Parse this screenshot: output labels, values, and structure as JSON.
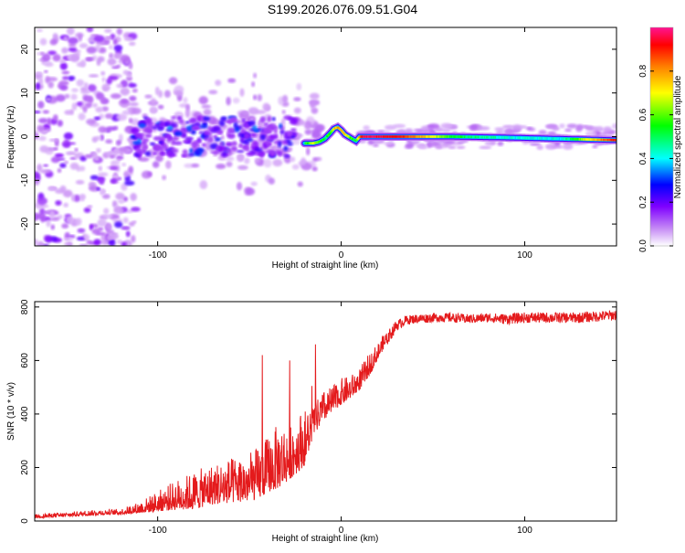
{
  "title": "S199.2026.076.09.51.G04",
  "colors": {
    "snr_line": "#e41a1c",
    "signal_ridge": "#e8112d",
    "background": "#ffffff"
  },
  "chart_data": [
    {
      "type": "heatmap",
      "name": "spectrogram",
      "xlabel": "Height of straight line (km)",
      "ylabel": "Frequency (Hz)",
      "xlim": [
        -167,
        150
      ],
      "ylim": [
        -25,
        25
      ],
      "xticks": [
        -100,
        0,
        100
      ],
      "yticks": [
        20,
        10,
        0,
        -10,
        -20
      ],
      "colorbar": {
        "label": "Normalized spectral amplitude",
        "range": [
          0,
          1
        ],
        "ticks": [
          0.0,
          0.2,
          0.4,
          0.6,
          0.8
        ],
        "colormap": [
          "#ffffff",
          "#b565f2",
          "#7f00ff",
          "#0000ff",
          "#00ffff",
          "#00ff00",
          "#ffff00",
          "#ff8000",
          "#ff0000",
          "#ff1493"
        ]
      },
      "ridge": {
        "x": [
          -20,
          -15,
          -12,
          -9,
          -6,
          -4,
          -2,
          0,
          2,
          4,
          6,
          8,
          10,
          12,
          30,
          60,
          90,
          120,
          150
        ],
        "y": [
          -1.5,
          -1.5,
          -1.2,
          -0.5,
          0.8,
          1.8,
          2.2,
          1.5,
          0.5,
          0.0,
          -0.5,
          -1.0,
          0.0,
          0.0,
          0.0,
          0.0,
          -0.2,
          -0.5,
          -0.8
        ],
        "amplitude": [
          0.55,
          0.65,
          0.6,
          0.5,
          0.6,
          0.7,
          0.75,
          0.75,
          0.7,
          0.6,
          0.55,
          0.55,
          0.85,
          0.95,
          0.9,
          0.55,
          0.45,
          0.45,
          0.9
        ]
      }
    },
    {
      "type": "line",
      "name": "snr",
      "xlabel": "Height of straight line (km)",
      "ylabel": "SNR (10 * v/v)",
      "xlim": [
        -167,
        150
      ],
      "ylim": [
        0,
        820
      ],
      "xticks": [
        -100,
        0,
        100
      ],
      "yticks": [
        0,
        200,
        400,
        600,
        800
      ],
      "series": [
        {
          "name": "SNR",
          "x": [
            -167,
            -150,
            -140,
            -130,
            -120,
            -110,
            -100,
            -90,
            -80,
            -70,
            -60,
            -50,
            -45,
            -40,
            -35,
            -30,
            -25,
            -20,
            -15,
            -10,
            -5,
            0,
            5,
            10,
            15,
            20,
            25,
            30,
            35,
            40,
            50,
            60,
            70,
            80,
            90,
            100,
            110,
            120,
            130,
            140,
            150
          ],
          "base": [
            15,
            20,
            25,
            28,
            30,
            40,
            55,
            70,
            80,
            100,
            110,
            120,
            130,
            160,
            180,
            200,
            230,
            260,
            350,
            400,
            430,
            460,
            480,
            510,
            560,
            620,
            680,
            730,
            750,
            755,
            760,
            760,
            755,
            760,
            755,
            760,
            760,
            760,
            760,
            765,
            770
          ],
          "spread": [
            10,
            12,
            14,
            14,
            15,
            30,
            55,
            80,
            100,
            110,
            120,
            130,
            140,
            150,
            170,
            160,
            160,
            150,
            80,
            80,
            70,
            70,
            60,
            60,
            60,
            45,
            35,
            25,
            22,
            22,
            22,
            22,
            22,
            22,
            25,
            25,
            25,
            25,
            25,
            25,
            25
          ],
          "peaks": [
            [
              -43,
              620
            ],
            [
              -28,
              600
            ],
            [
              -14,
              660
            ],
            [
              -16,
              505
            ]
          ]
        }
      ]
    }
  ]
}
